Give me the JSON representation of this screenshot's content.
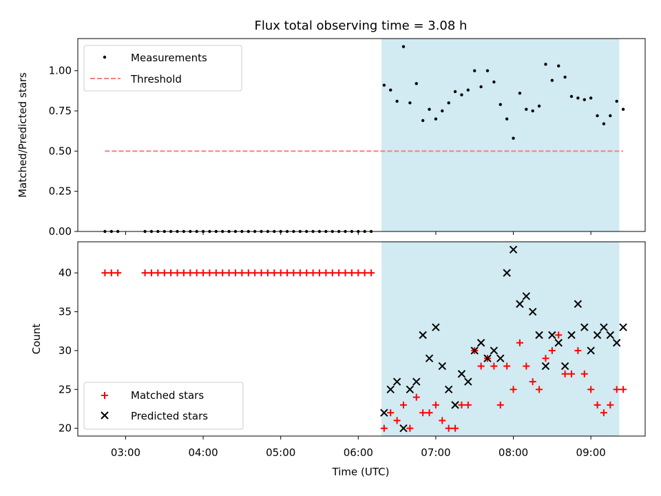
{
  "chart_data": [
    {
      "type": "scatter",
      "title": "Flux total observing time = 3.08 h",
      "xlabel": "",
      "ylabel": "Matched/Predicted stars",
      "ylim": [
        0,
        1.2
      ],
      "xlim": [
        "02:23",
        "09:42"
      ],
      "yticks": [
        "0.00",
        "0.25",
        "0.50",
        "0.75",
        "1.00"
      ],
      "ytick_values": [
        0,
        0.25,
        0.5,
        0.75,
        1.0
      ],
      "legend_position": "top-left",
      "shaded_region": {
        "x_start": "06:18",
        "x_end": "09:22",
        "color": "#add8e6"
      },
      "series": [
        {
          "name": "Measurements",
          "marker": "dot",
          "color": "#000000",
          "x": [
            "02:44",
            "02:49",
            "02:54",
            "03:15",
            "03:20",
            "03:25",
            "03:30",
            "03:35",
            "03:40",
            "03:45",
            "03:50",
            "03:55",
            "04:00",
            "04:05",
            "04:10",
            "04:15",
            "04:20",
            "04:25",
            "04:30",
            "04:35",
            "04:40",
            "04:45",
            "04:50",
            "04:55",
            "05:00",
            "05:05",
            "05:10",
            "05:15",
            "05:20",
            "05:25",
            "05:30",
            "05:35",
            "05:40",
            "05:45",
            "05:50",
            "05:55",
            "06:00",
            "06:05",
            "06:10",
            "06:20",
            "06:25",
            "06:30",
            "06:35",
            "06:40",
            "06:45",
            "06:50",
            "06:55",
            "07:00",
            "07:05",
            "07:10",
            "07:15",
            "07:20",
            "07:25",
            "07:30",
            "07:35",
            "07:40",
            "07:45",
            "07:50",
            "07:55",
            "08:00",
            "08:05",
            "08:10",
            "08:15",
            "08:20",
            "08:25",
            "08:30",
            "08:35",
            "08:40",
            "08:45",
            "08:50",
            "08:55",
            "09:00",
            "09:05",
            "09:10",
            "09:15",
            "09:20",
            "09:25"
          ],
          "values": [
            0,
            0,
            0,
            0,
            0,
            0,
            0,
            0,
            0,
            0,
            0,
            0,
            0,
            0,
            0,
            0,
            0,
            0,
            0,
            0,
            0,
            0,
            0,
            0,
            0,
            0,
            0,
            0,
            0,
            0,
            0,
            0,
            0,
            0,
            0,
            0,
            0,
            0,
            0,
            0.91,
            0.88,
            0.81,
            1.15,
            0.8,
            0.92,
            0.69,
            0.76,
            0.7,
            0.75,
            0.8,
            0.87,
            0.85,
            0.88,
            1.0,
            0.9,
            1.0,
            0.93,
            0.79,
            0.7,
            0.58,
            0.86,
            0.76,
            0.75,
            0.78,
            1.04,
            0.94,
            1.03,
            0.96,
            0.84,
            0.83,
            0.82,
            0.83,
            0.72,
            0.67,
            0.72,
            0.81,
            0.76
          ]
        },
        {
          "name": "Threshold",
          "marker": "dashed-line",
          "color": "#f08080",
          "x": [
            "02:44",
            "09:25"
          ],
          "values": [
            0.5,
            0.5
          ]
        }
      ]
    },
    {
      "type": "scatter",
      "title": "",
      "xlabel": "Time (UTC)",
      "ylabel": "Count",
      "ylim": [
        19,
        44
      ],
      "xlim": [
        "02:23",
        "09:42"
      ],
      "xticks": [
        "03:00",
        "04:00",
        "05:00",
        "06:00",
        "07:00",
        "08:00",
        "09:00"
      ],
      "yticks": [
        "20",
        "25",
        "30",
        "35",
        "40"
      ],
      "ytick_values": [
        20,
        25,
        30,
        35,
        40
      ],
      "legend_position": "bottom-left",
      "shaded_region": {
        "x_start": "06:18",
        "x_end": "09:22",
        "color": "#add8e6"
      },
      "series": [
        {
          "name": "Matched stars",
          "marker": "plus",
          "color": "#ff0000",
          "x": [
            "02:44",
            "02:49",
            "02:54",
            "03:15",
            "03:20",
            "03:25",
            "03:30",
            "03:35",
            "03:40",
            "03:45",
            "03:50",
            "03:55",
            "04:00",
            "04:05",
            "04:10",
            "04:15",
            "04:20",
            "04:25",
            "04:30",
            "04:35",
            "04:40",
            "04:45",
            "04:50",
            "04:55",
            "05:00",
            "05:05",
            "05:10",
            "05:15",
            "05:20",
            "05:25",
            "05:30",
            "05:35",
            "05:40",
            "05:45",
            "05:50",
            "05:55",
            "06:00",
            "06:05",
            "06:10",
            "06:20",
            "06:25",
            "06:30",
            "06:35",
            "06:40",
            "06:45",
            "06:50",
            "06:55",
            "07:00",
            "07:05",
            "07:10",
            "07:15",
            "07:20",
            "07:25",
            "07:30",
            "07:35",
            "07:40",
            "07:45",
            "07:50",
            "07:55",
            "08:00",
            "08:05",
            "08:10",
            "08:15",
            "08:20",
            "08:25",
            "08:30",
            "08:35",
            "08:40",
            "08:45",
            "08:50",
            "08:55",
            "09:00",
            "09:05",
            "09:10",
            "09:15",
            "09:20",
            "09:25"
          ],
          "values": [
            40,
            40,
            40,
            40,
            40,
            40,
            40,
            40,
            40,
            40,
            40,
            40,
            40,
            40,
            40,
            40,
            40,
            40,
            40,
            40,
            40,
            40,
            40,
            40,
            40,
            40,
            40,
            40,
            40,
            40,
            40,
            40,
            40,
            40,
            40,
            40,
            40,
            40,
            40,
            20,
            22,
            21,
            23,
            20,
            24,
            22,
            22,
            23,
            21,
            20,
            20,
            23,
            23,
            30,
            28,
            29,
            28,
            23,
            28,
            25,
            31,
            28,
            26,
            25,
            29,
            30,
            32,
            27,
            27,
            30,
            27,
            25,
            23,
            22,
            23,
            25,
            25
          ]
        },
        {
          "name": "Predicted stars",
          "marker": "x",
          "color": "#000000",
          "x": [
            "06:20",
            "06:25",
            "06:30",
            "06:35",
            "06:40",
            "06:45",
            "06:50",
            "06:55",
            "07:00",
            "07:05",
            "07:10",
            "07:15",
            "07:20",
            "07:25",
            "07:30",
            "07:35",
            "07:40",
            "07:45",
            "07:50",
            "07:55",
            "08:00",
            "08:05",
            "08:10",
            "08:15",
            "08:20",
            "08:25",
            "08:30",
            "08:35",
            "08:40",
            "08:45",
            "08:50",
            "08:55",
            "09:00",
            "09:05",
            "09:10",
            "09:15",
            "09:20",
            "09:25"
          ],
          "values": [
            22,
            25,
            26,
            20,
            25,
            26,
            32,
            29,
            33,
            28,
            25,
            23,
            27,
            26,
            30,
            31,
            29,
            30,
            29,
            40,
            43,
            36,
            37,
            35,
            32,
            28,
            32,
            31,
            28,
            32,
            36,
            33,
            30,
            32,
            33,
            32,
            31,
            33
          ]
        }
      ]
    }
  ]
}
